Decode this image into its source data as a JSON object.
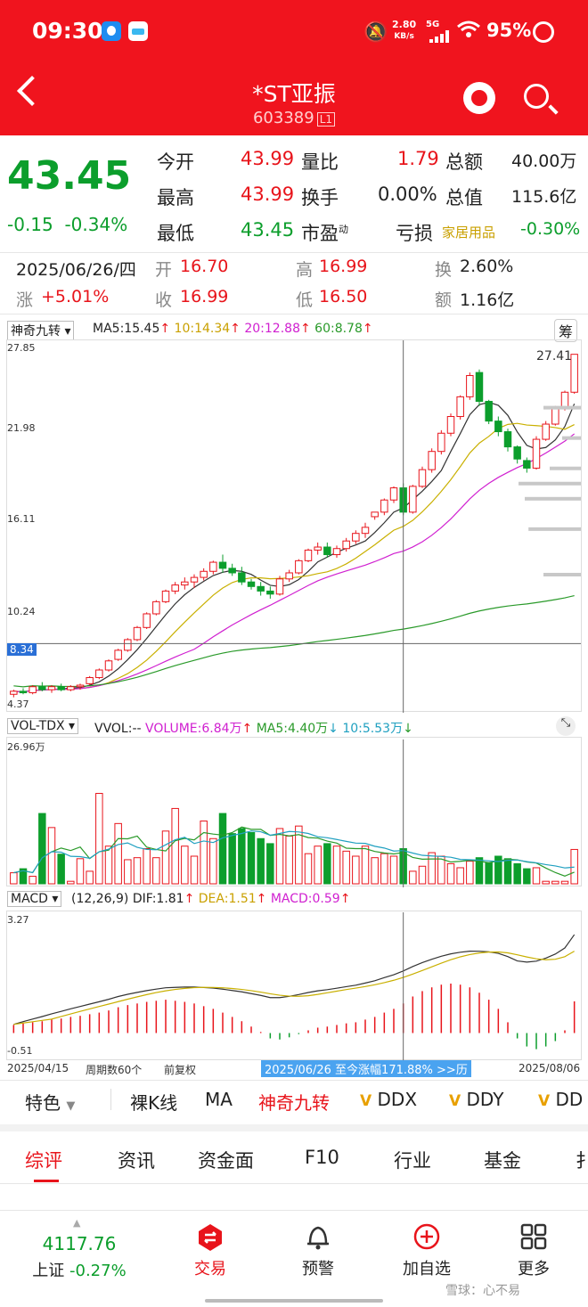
{
  "status": {
    "time": "09:30",
    "net_speed": "2.80",
    "net_unit": "KB/s",
    "net_type": "5G",
    "battery": "95%"
  },
  "header": {
    "title": "*ST亚振",
    "code": "603389",
    "code_badge": "L1"
  },
  "quote": {
    "price": "43.45",
    "change": "-0.15",
    "change_pct": "-0.34%",
    "rows": [
      {
        "l1": "今开",
        "v1": "43.99",
        "l2": "量比",
        "v2": "1.79",
        "l3": "总额",
        "v3": "40.00万"
      },
      {
        "l1": "最高",
        "v1": "43.99",
        "l2": "换手",
        "v2": "0.00%",
        "l3": "总值",
        "v3": "115.6亿"
      },
      {
        "l1": "最低",
        "v1": "43.45",
        "l2": "市盈",
        "l2sup": "动",
        "v2": "亏损",
        "l3": "家居用品",
        "v3": "-0.30%"
      }
    ]
  },
  "dayinfo": {
    "date": "2025/06/26/四",
    "open_l": "开",
    "open": "16.70",
    "high_l": "高",
    "high": "16.99",
    "turn_l": "换",
    "turn": "2.60%",
    "chg_l": "涨",
    "chg": "+5.01%",
    "close_l": "收",
    "close": "16.99",
    "low_l": "低",
    "low": "16.50",
    "amt_l": "额",
    "amt": "1.16亿"
  },
  "kline": {
    "indicator": "神奇九转",
    "ma5": "MA5:15.45",
    "ma10": "10:14.34",
    "ma20": "20:12.88",
    "ma60": "60:8.78",
    "chip_btn": "筹",
    "y_labels": [
      "27.85",
      "21.98",
      "16.11",
      "10.24",
      "4.37"
    ],
    "cursor_price": "8.34",
    "max_label": "27.41"
  },
  "vol": {
    "indicator": "VOL-TDX",
    "vvol": "VVOL:--",
    "volume": "VOLUME:6.84万",
    "ma5": "MA5:4.40万",
    "ma10": "10:5.53万",
    "y_label": "26.96万"
  },
  "macd": {
    "indicator": "MACD",
    "params": "(12,26,9)",
    "dif": "DIF:1.81",
    "dea": "DEA:1.51",
    "macd": "MACD:0.59",
    "y_top": "3.27",
    "y_bot": "-0.51"
  },
  "footer_axis": {
    "start": "2025/04/15",
    "period": "周期数60个",
    "adjust": "前复权",
    "range": "2025/06/26 至今涨幅171.88% >>历",
    "end": "2025/08/06"
  },
  "indicator_bar": [
    "特色",
    "裸K线",
    "MA",
    "神奇九转",
    "DDX",
    "DDY",
    "DD"
  ],
  "tabs": [
    "综评",
    "资讯",
    "资金面",
    "F10",
    "行业",
    "基金",
    "扌"
  ],
  "bottom": {
    "index_value": "4117.76",
    "index_name": "上证",
    "index_chg": "-0.27%",
    "trade": "交易",
    "alert": "预警",
    "add": "加自选",
    "more": "更多",
    "watermark": "雪球：心不易"
  },
  "colors": {
    "header": "#f0141e",
    "up": "#e8141b",
    "down": "#0c9e2c"
  },
  "chart_data": {
    "type": "candlestick",
    "candles": [
      [
        5.0,
        5.3,
        4.8,
        5.2
      ],
      [
        5.2,
        5.4,
        5.0,
        5.1
      ],
      [
        5.1,
        5.6,
        5.0,
        5.5
      ],
      [
        5.5,
        5.8,
        5.2,
        5.3
      ],
      [
        5.3,
        5.6,
        5.1,
        5.5
      ],
      [
        5.5,
        5.7,
        5.2,
        5.3
      ],
      [
        5.3,
        5.6,
        5.2,
        5.5
      ],
      [
        5.5,
        5.7,
        5.3,
        5.6
      ],
      [
        5.7,
        6.2,
        5.6,
        6.1
      ],
      [
        6.1,
        6.7,
        6.0,
        6.6
      ],
      [
        6.6,
        7.3,
        6.5,
        7.2
      ],
      [
        7.3,
        8.0,
        7.2,
        7.9
      ],
      [
        7.9,
        8.7,
        7.8,
        8.6
      ],
      [
        8.6,
        9.5,
        8.5,
        9.4
      ],
      [
        9.4,
        10.4,
        9.3,
        10.3
      ],
      [
        10.3,
        11.2,
        10.2,
        11.1
      ],
      [
        11.1,
        11.9,
        11.0,
        11.8
      ],
      [
        11.8,
        12.4,
        11.6,
        12.2
      ],
      [
        12.2,
        12.7,
        11.9,
        12.4
      ],
      [
        12.4,
        12.9,
        12.0,
        12.7
      ],
      [
        12.7,
        13.3,
        12.5,
        13.1
      ],
      [
        13.1,
        13.8,
        12.9,
        13.7
      ],
      [
        13.7,
        14.2,
        13.0,
        13.3
      ],
      [
        13.3,
        13.6,
        12.8,
        13.0
      ],
      [
        13.0,
        13.4,
        12.2,
        12.4
      ],
      [
        12.4,
        12.6,
        11.9,
        12.1
      ],
      [
        12.1,
        12.4,
        11.5,
        11.8
      ],
      [
        11.8,
        12.1,
        11.3,
        11.6
      ],
      [
        11.6,
        12.8,
        11.5,
        12.6
      ],
      [
        12.6,
        13.2,
        12.4,
        13.0
      ],
      [
        13.0,
        13.9,
        12.9,
        13.8
      ],
      [
        13.8,
        14.6,
        13.7,
        14.5
      ],
      [
        14.5,
        15.0,
        14.2,
        14.7
      ],
      [
        14.7,
        15.0,
        14.0,
        14.2
      ],
      [
        14.2,
        14.8,
        14.0,
        14.6
      ],
      [
        14.6,
        15.3,
        14.4,
        15.1
      ],
      [
        15.1,
        15.8,
        14.9,
        15.6
      ],
      [
        15.6,
        16.3,
        15.3,
        16.0
      ],
      [
        16.7,
        17.0,
        16.5,
        17.0
      ],
      [
        17.0,
        17.9,
        16.8,
        17.8
      ],
      [
        17.8,
        18.7,
        17.6,
        18.6
      ],
      [
        18.6,
        18.9,
        16.8,
        17.0
      ],
      [
        17.0,
        18.8,
        16.9,
        18.7
      ],
      [
        18.7,
        20.0,
        18.6,
        19.8
      ],
      [
        19.8,
        21.2,
        19.6,
        21.0
      ],
      [
        21.0,
        22.4,
        20.8,
        22.2
      ],
      [
        22.2,
        23.5,
        22.0,
        23.3
      ],
      [
        23.3,
        24.7,
        23.1,
        24.6
      ],
      [
        24.6,
        26.2,
        24.4,
        26.0
      ],
      [
        26.2,
        26.4,
        24.0,
        24.3
      ],
      [
        24.3,
        24.4,
        22.8,
        23.0
      ],
      [
        23.0,
        23.3,
        22.0,
        22.3
      ],
      [
        22.3,
        22.5,
        21.0,
        21.3
      ],
      [
        21.3,
        21.4,
        20.2,
        20.5
      ],
      [
        20.4,
        20.6,
        19.6,
        19.9
      ],
      [
        19.9,
        22.0,
        19.8,
        21.8
      ],
      [
        21.8,
        23.0,
        21.7,
        22.8
      ],
      [
        22.8,
        24.0,
        22.7,
        23.8
      ],
      [
        23.8,
        25.0,
        23.7,
        24.9
      ],
      [
        24.9,
        27.41,
        24.8,
        27.4
      ]
    ],
    "volume": [
      2.2,
      3.0,
      1.5,
      14.0,
      11.2,
      5.9,
      0.5,
      5.0,
      2.5,
      18.0,
      7.5,
      12.0,
      4.8,
      5.2,
      7.0,
      5.2,
      10.5,
      15.0,
      7.5,
      5.5,
      12.5,
      9.0,
      14.0,
      10.0,
      11.0,
      10.2,
      9.0,
      8.0,
      11.0,
      9.5,
      11.5,
      6.0,
      7.5,
      8.0,
      7.5,
      6.5,
      5.5,
      7.5,
      5.2,
      6.0,
      5.5,
      7.0,
      2.5,
      3.5,
      6.2,
      5.5,
      4.0,
      3.2,
      4.5,
      5.2,
      4.2,
      5.5,
      5.0,
      4.0,
      3.0,
      3.2,
      0.5,
      0.5,
      0.5,
      6.84
    ],
    "macd_hist": [
      0.15,
      0.18,
      0.2,
      0.22,
      0.25,
      0.27,
      0.3,
      0.32,
      0.35,
      0.38,
      0.42,
      0.48,
      0.52,
      0.55,
      0.58,
      0.6,
      0.62,
      0.6,
      0.58,
      0.55,
      0.5,
      0.45,
      0.38,
      0.3,
      0.22,
      0.12,
      0.02,
      -0.1,
      -0.12,
      -0.08,
      -0.02,
      0.05,
      0.1,
      0.12,
      0.15,
      0.18,
      0.2,
      0.25,
      0.3,
      0.38,
      0.45,
      0.55,
      0.68,
      0.78,
      0.85,
      0.9,
      0.92,
      0.9,
      0.85,
      0.75,
      0.62,
      0.45,
      0.2,
      -0.1,
      -0.25,
      -0.3,
      -0.25,
      -0.15,
      0.05,
      0.59
    ]
  }
}
